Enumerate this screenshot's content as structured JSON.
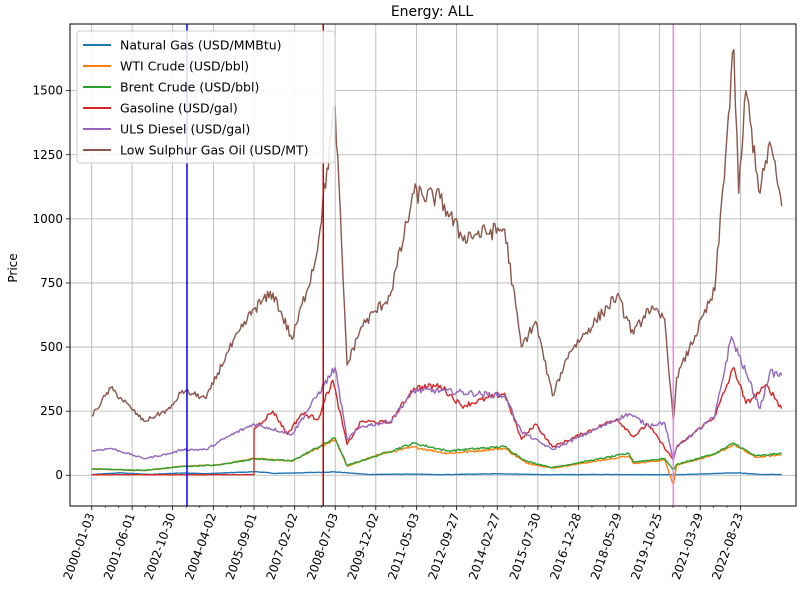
{
  "chart_data": {
    "type": "line",
    "title": "Energy: ALL",
    "xlabel": "",
    "ylabel": "Price",
    "grid": true,
    "legend_position": "top-left",
    "xlim": [
      "1999-04-01",
      "2024-08-01"
    ],
    "ylim": [
      -120,
      1760
    ],
    "x_ticks": [
      "2000-01-03",
      "2001-06-01",
      "2002-10-30",
      "2004-04-02",
      "2005-09-01",
      "2007-02-02",
      "2008-07-03",
      "2009-12-02",
      "2011-05-03",
      "2012-09-27",
      "2014-02-27",
      "2015-07-30",
      "2016-12-28",
      "2018-05-29",
      "2019-10-25",
      "2021-03-29",
      "2022-08-23"
    ],
    "y_ticks": [
      0,
      250,
      500,
      750,
      1000,
      1250,
      1500
    ],
    "vlines": [
      {
        "x": "2003-05-01",
        "color": "#0000ff"
      },
      {
        "x": "2008-02-01",
        "color": "#cc0000"
      },
      {
        "x": "2020-04-20",
        "color": "#ee82ee"
      }
    ],
    "series": [
      {
        "name": "Natural Gas (USD/MMBtu)",
        "color": "#1f77b4",
        "points": [
          [
            "2000-01-03",
            2.3
          ],
          [
            "2001-01-01",
            9.5
          ],
          [
            "2002-01-01",
            3
          ],
          [
            "2003-03-01",
            9
          ],
          [
            "2004-01-01",
            6
          ],
          [
            "2005-10-01",
            14
          ],
          [
            "2006-06-01",
            7
          ],
          [
            "2008-07-01",
            13
          ],
          [
            "2009-09-01",
            3
          ],
          [
            "2011-01-01",
            4.5
          ],
          [
            "2012-04-01",
            2
          ],
          [
            "2014-02-01",
            6
          ],
          [
            "2015-12-01",
            2
          ],
          [
            "2018-01-01",
            3
          ],
          [
            "2020-06-01",
            1.8
          ],
          [
            "2022-08-01",
            9.5
          ],
          [
            "2023-06-01",
            2.5
          ],
          [
            "2024-02-01",
            3
          ]
        ]
      },
      {
        "name": "WTI Crude (USD/bbl)",
        "color": "#ff7f0e",
        "points": [
          [
            "2000-01-03",
            25
          ],
          [
            "2001-11-01",
            18
          ],
          [
            "2003-03-01",
            35
          ],
          [
            "2004-06-01",
            40
          ],
          [
            "2005-09-01",
            65
          ],
          [
            "2007-01-01",
            55
          ],
          [
            "2008-07-01",
            140
          ],
          [
            "2008-12-01",
            35
          ],
          [
            "2010-01-01",
            80
          ],
          [
            "2011-04-01",
            110
          ],
          [
            "2012-06-01",
            85
          ],
          [
            "2014-06-01",
            105
          ],
          [
            "2015-03-01",
            48
          ],
          [
            "2016-02-01",
            28
          ],
          [
            "2018-10-01",
            75
          ],
          [
            "2018-12-01",
            45
          ],
          [
            "2020-01-01",
            60
          ],
          [
            "2020-04-20",
            -37
          ],
          [
            "2020-06-01",
            40
          ],
          [
            "2021-10-01",
            80
          ],
          [
            "2022-06-01",
            120
          ],
          [
            "2023-03-01",
            70
          ],
          [
            "2024-02-01",
            80
          ]
        ]
      },
      {
        "name": "Brent Crude (USD/bbl)",
        "color": "#2ca02c",
        "points": [
          [
            "2000-01-03",
            25
          ],
          [
            "2001-11-01",
            19
          ],
          [
            "2003-03-01",
            34
          ],
          [
            "2004-06-01",
            40
          ],
          [
            "2005-09-01",
            64
          ],
          [
            "2007-01-01",
            56
          ],
          [
            "2008-07-01",
            145
          ],
          [
            "2008-12-01",
            38
          ],
          [
            "2010-01-01",
            78
          ],
          [
            "2011-04-01",
            125
          ],
          [
            "2012-06-01",
            95
          ],
          [
            "2014-06-01",
            112
          ],
          [
            "2015-03-01",
            55
          ],
          [
            "2016-02-01",
            30
          ],
          [
            "2018-10-01",
            85
          ],
          [
            "2018-12-01",
            52
          ],
          [
            "2020-01-01",
            65
          ],
          [
            "2020-04-20",
            20
          ],
          [
            "2020-06-01",
            42
          ],
          [
            "2021-10-01",
            84
          ],
          [
            "2022-06-01",
            125
          ],
          [
            "2023-03-01",
            75
          ],
          [
            "2024-02-01",
            85
          ]
        ]
      },
      {
        "name": "Gasoline (USD/gal)",
        "color": "#d62728",
        "points": [
          [
            "2000-01-03",
            2
          ],
          [
            "2005-09-01",
            2
          ],
          [
            "2005-09-02",
            180
          ],
          [
            "2006-05-01",
            250
          ],
          [
            "2006-11-01",
            160
          ],
          [
            "2007-05-01",
            240
          ],
          [
            "2007-12-01",
            220
          ],
          [
            "2008-02-01",
            280
          ],
          [
            "2008-06-01",
            370
          ],
          [
            "2008-12-01",
            120
          ],
          [
            "2009-06-01",
            210
          ],
          [
            "2010-06-01",
            205
          ],
          [
            "2011-04-01",
            340
          ],
          [
            "2012-03-01",
            350
          ],
          [
            "2012-12-01",
            270
          ],
          [
            "2014-06-01",
            320
          ],
          [
            "2015-01-01",
            140
          ],
          [
            "2015-07-01",
            200
          ],
          [
            "2016-02-01",
            110
          ],
          [
            "2018-05-01",
            220
          ],
          [
            "2018-12-01",
            150
          ],
          [
            "2019-06-01",
            200
          ],
          [
            "2020-04-20",
            60
          ],
          [
            "2020-06-01",
            110
          ],
          [
            "2021-10-01",
            230
          ],
          [
            "2022-06-01",
            420
          ],
          [
            "2022-11-01",
            280
          ],
          [
            "2023-08-01",
            350
          ],
          [
            "2024-02-01",
            260
          ]
        ]
      },
      {
        "name": "ULS Diesel (USD/gal)",
        "color": "#9467bd",
        "points": [
          [
            "2000-01-03",
            95
          ],
          [
            "2000-09-01",
            105
          ],
          [
            "2001-11-01",
            65
          ],
          [
            "2002-10-01",
            85
          ],
          [
            "2003-03-01",
            100
          ],
          [
            "2004-01-01",
            100
          ],
          [
            "2004-10-01",
            150
          ],
          [
            "2005-09-01",
            200
          ],
          [
            "2007-01-01",
            160
          ],
          [
            "2008-07-01",
            420
          ],
          [
            "2008-12-01",
            140
          ],
          [
            "2009-06-01",
            190
          ],
          [
            "2010-06-01",
            210
          ],
          [
            "2011-04-01",
            330
          ],
          [
            "2012-03-01",
            330
          ],
          [
            "2014-06-01",
            310
          ],
          [
            "2015-01-01",
            170
          ],
          [
            "2016-02-01",
            100
          ],
          [
            "2018-10-01",
            240
          ],
          [
            "2019-06-01",
            195
          ],
          [
            "2020-01-01",
            205
          ],
          [
            "2020-04-20",
            60
          ],
          [
            "2020-06-01",
            110
          ],
          [
            "2021-10-01",
            230
          ],
          [
            "2022-05-01",
            540
          ],
          [
            "2022-11-01",
            400
          ],
          [
            "2023-05-01",
            260
          ],
          [
            "2023-09-01",
            400
          ],
          [
            "2024-02-01",
            390
          ]
        ]
      },
      {
        "name": "Low Sulphur Gas Oil (USD/MT)",
        "color": "#8c564b",
        "points": [
          [
            "2000-01-03",
            230
          ],
          [
            "2000-09-01",
            340
          ],
          [
            "2001-11-01",
            210
          ],
          [
            "2002-10-01",
            260
          ],
          [
            "2003-03-01",
            330
          ],
          [
            "2004-01-01",
            300
          ],
          [
            "2004-10-01",
            480
          ],
          [
            "2005-09-01",
            650
          ],
          [
            "2006-05-01",
            710
          ],
          [
            "2007-01-01",
            530
          ],
          [
            "2007-11-01",
            850
          ],
          [
            "2008-07-01",
            1440
          ],
          [
            "2008-12-01",
            430
          ],
          [
            "2009-06-01",
            580
          ],
          [
            "2010-06-01",
            700
          ],
          [
            "2011-04-01",
            1100
          ],
          [
            "2012-03-01",
            1080
          ],
          [
            "2012-12-01",
            930
          ],
          [
            "2014-06-01",
            960
          ],
          [
            "2015-01-01",
            500
          ],
          [
            "2015-07-01",
            600
          ],
          [
            "2016-02-01",
            310
          ],
          [
            "2016-09-01",
            480
          ],
          [
            "2018-05-01",
            700
          ],
          [
            "2018-12-01",
            550
          ],
          [
            "2019-06-01",
            650
          ],
          [
            "2020-01-01",
            610
          ],
          [
            "2020-04-20",
            210
          ],
          [
            "2020-06-01",
            380
          ],
          [
            "2021-10-01",
            720
          ],
          [
            "2022-06-01",
            1660
          ],
          [
            "2022-08-01",
            1100
          ],
          [
            "2022-11-01",
            1500
          ],
          [
            "2023-05-01",
            1100
          ],
          [
            "2023-09-01",
            1300
          ],
          [
            "2024-02-01",
            1050
          ]
        ]
      }
    ]
  }
}
